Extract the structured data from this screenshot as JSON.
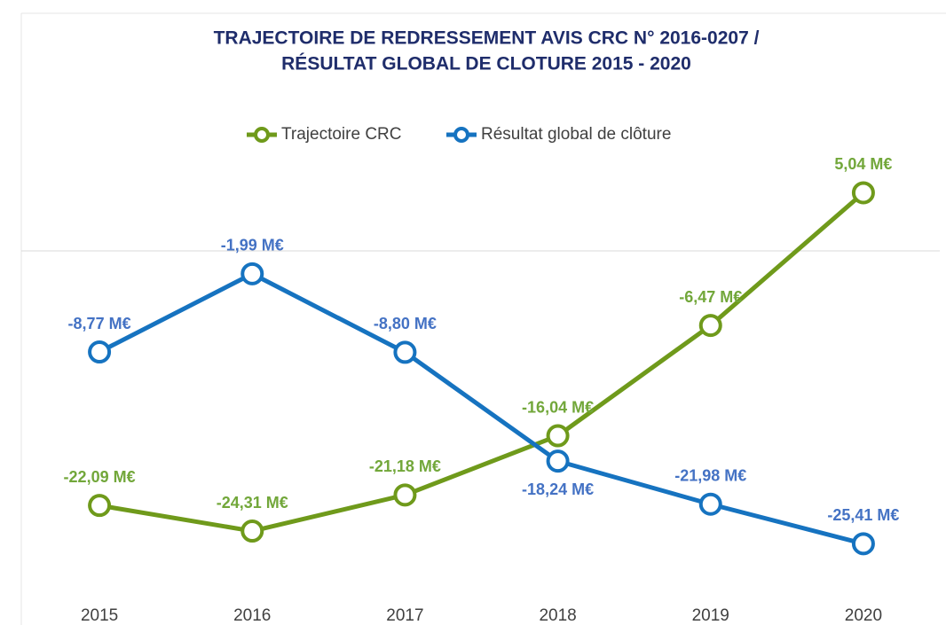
{
  "chart_data": {
    "type": "line",
    "title": [
      "TRAJECTOIRE DE REDRESSEMENT AVIS CRC N° 2016-0207 /",
      "RÉSULTAT GLOBAL DE CLOTURE 2015 - 2020"
    ],
    "categories": [
      "2015",
      "2016",
      "2017",
      "2018",
      "2019",
      "2020"
    ],
    "series": [
      {
        "name": "Trajectoire CRC",
        "color": "#6f9a1b",
        "label_color": "#72a73a",
        "values": [
          -22.09,
          -24.31,
          -21.18,
          -16.04,
          -6.47,
          5.04
        ],
        "value_labels": [
          "-22,09 M€",
          "-24,31 M€",
          "-21,18 M€",
          "-16,04 M€",
          "-6,47 M€",
          "5,04 M€"
        ]
      },
      {
        "name": "Résultat global de clôture",
        "color": "#1673c0",
        "label_color": "#4472c4",
        "values": [
          -8.77,
          -1.99,
          -8.8,
          -18.24,
          -21.98,
          -25.41
        ],
        "value_labels": [
          "-8,77 M€",
          "-1,99 M€",
          "-8,80 M€",
          "-18,24 M€",
          "-21,98 M€",
          "-25,41 M€"
        ]
      }
    ],
    "ylim": [
      -30,
      10
    ],
    "legend": "top"
  }
}
